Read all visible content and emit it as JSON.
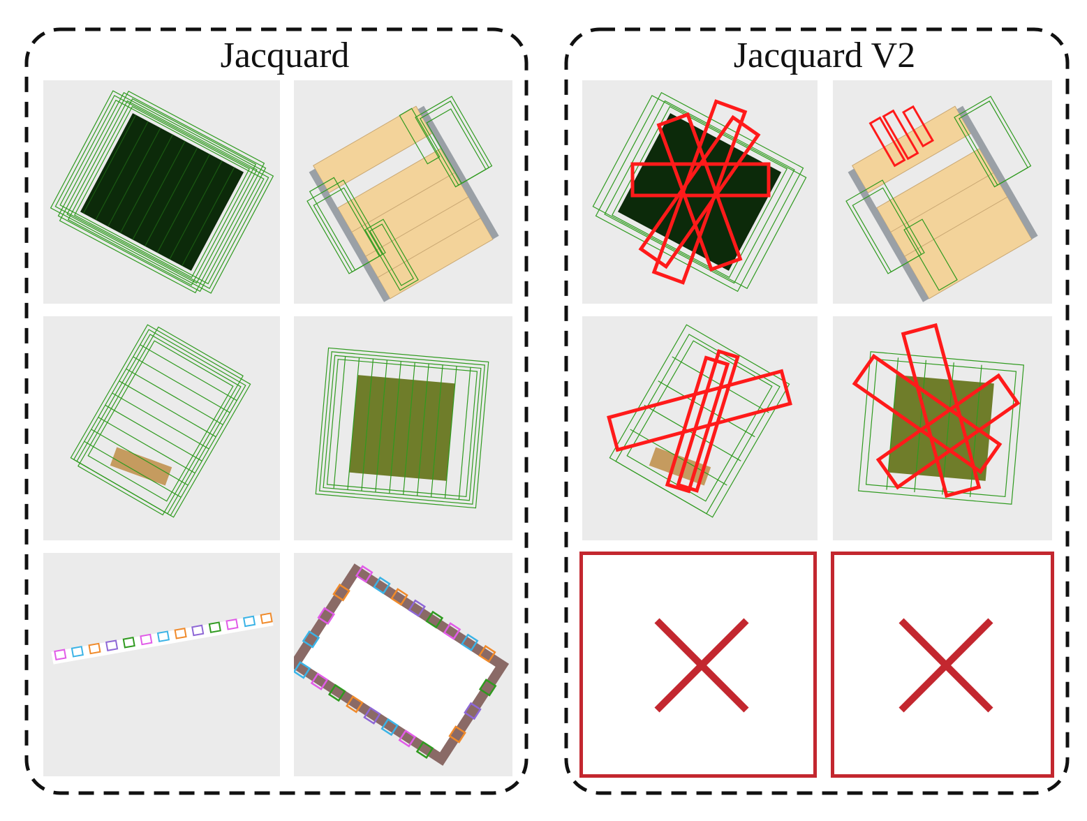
{
  "panels": {
    "left": {
      "title": "Jacquard"
    },
    "right": {
      "title": "Jacquard V2"
    }
  },
  "colors": {
    "frame": "#111111",
    "grasp_green": "#2f9a1f",
    "grasp_red": "#ff1a1a",
    "missing_marker": "#c3272f",
    "background_tile": "#ebebeb",
    "object_wood": "#f3d39a"
  },
  "grid": {
    "rows": 3,
    "cols": 4,
    "tiles": [
      {
        "id": "r1c1",
        "object": "dark-box",
        "annotations": "dense-green"
      },
      {
        "id": "r1c2",
        "object": "wooden-chair",
        "annotations": "green"
      },
      {
        "id": "r1c3",
        "object": "dark-box",
        "annotations": "dense-green-plus-red"
      },
      {
        "id": "r1c4",
        "object": "wooden-chair",
        "annotations": "green-plus-red"
      },
      {
        "id": "r2c1",
        "object": "small-block",
        "annotations": "dense-green"
      },
      {
        "id": "r2c2",
        "object": "box",
        "annotations": "dense-green"
      },
      {
        "id": "r2c3",
        "object": "small-block",
        "annotations": "dense-green-plus-red"
      },
      {
        "id": "r2c4",
        "object": "box",
        "annotations": "dense-green-plus-red"
      },
      {
        "id": "r3c1",
        "object": "long-rod",
        "annotations": "multicolor"
      },
      {
        "id": "r3c2",
        "object": "rectangular-frame",
        "annotations": "multicolor"
      },
      {
        "id": "r3c3",
        "object": "none",
        "annotations": "missing"
      },
      {
        "id": "r3c4",
        "object": "none",
        "annotations": "missing"
      }
    ]
  }
}
